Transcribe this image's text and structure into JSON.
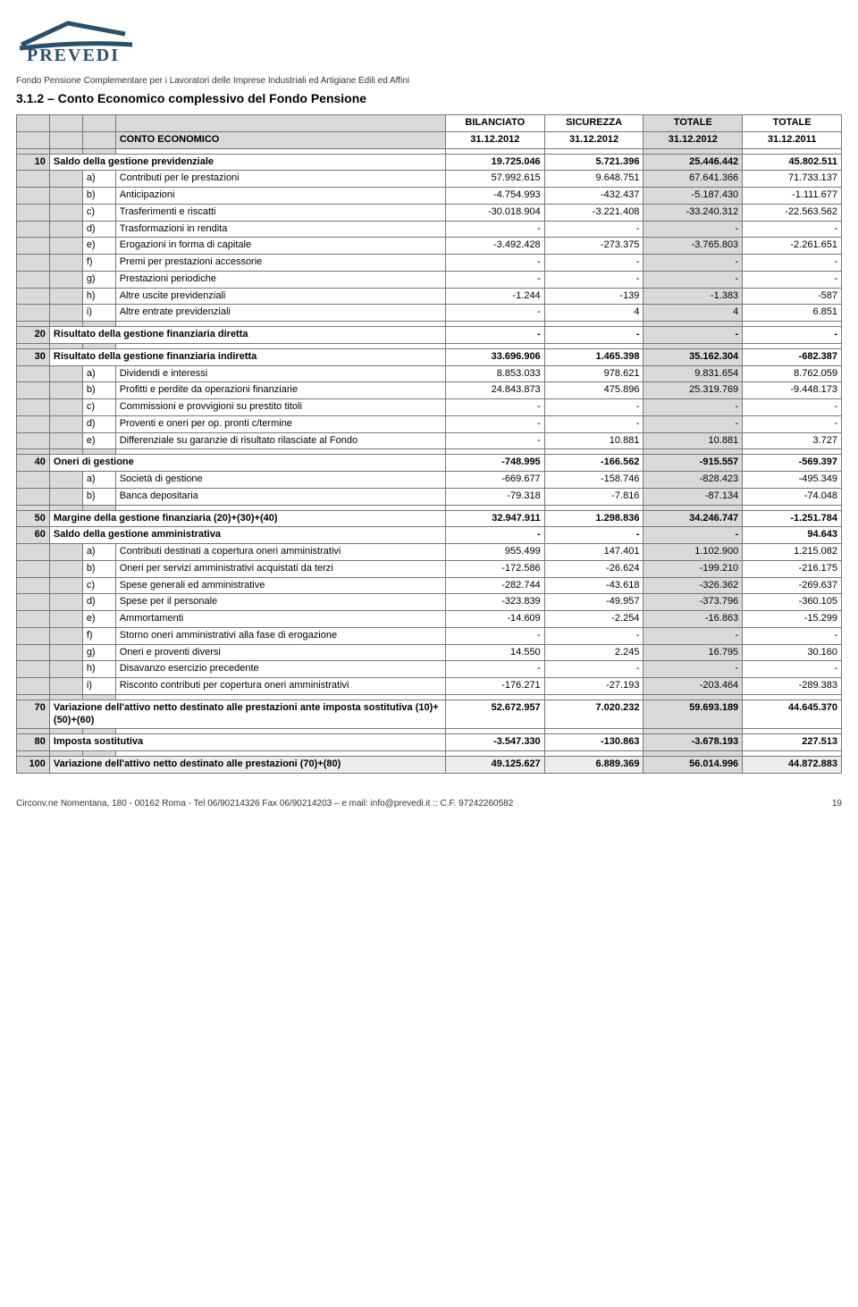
{
  "header": {
    "logo_text": "PREVEDI",
    "sub": "Fondo Pensione Complementare per i Lavoratori delle Imprese Industriali ed Artigiane Edili ed Affini",
    "title": "3.1.2 – Conto Economico complessivo del Fondo Pensione"
  },
  "thead": {
    "desc": "CONTO ECONOMICO",
    "col1_top": "BILANCIATO",
    "col1_bot": "31.12.2012",
    "col2_top": "SICUREZZA",
    "col2_bot": "31.12.2012",
    "col3_top": "TOTALE",
    "col3_bot": "31.12.2012",
    "col4_top": "TOTALE",
    "col4_bot": "31.12.2011"
  },
  "rows": [
    {
      "type": "sum",
      "code": "10",
      "desc": "Saldo della gestione previdenziale",
      "v": [
        "19.725.046",
        "5.721.396",
        "25.446.442",
        "45.802.511"
      ]
    },
    {
      "type": "sub",
      "let": "a)",
      "desc": "Contributi per le prestazioni",
      "v": [
        "57.992.615",
        "9.648.751",
        "67.641.366",
        "71.733.137"
      ]
    },
    {
      "type": "sub",
      "let": "b)",
      "desc": "Anticipazioni",
      "v": [
        "-4.754.993",
        "-432.437",
        "-5.187.430",
        "-1.111.677"
      ]
    },
    {
      "type": "sub",
      "let": "c)",
      "desc": "Trasferimenti e riscatti",
      "v": [
        "-30.018.904",
        "-3.221.408",
        "-33.240.312",
        "-22.563.562"
      ]
    },
    {
      "type": "sub",
      "let": "d)",
      "desc": "Trasformazioni in rendita",
      "v": [
        "-",
        "-",
        "-",
        "-"
      ]
    },
    {
      "type": "sub",
      "let": "e)",
      "desc": "Erogazioni in forma di capitale",
      "v": [
        "-3.492.428",
        "-273.375",
        "-3.765.803",
        "-2.261.651"
      ]
    },
    {
      "type": "sub",
      "let": "f)",
      "desc": "Premi per prestazioni accessorie",
      "v": [
        "-",
        "-",
        "-",
        "-"
      ]
    },
    {
      "type": "sub",
      "let": "g)",
      "desc": "Prestazioni periodiche",
      "v": [
        "-",
        "-",
        "-",
        "-"
      ]
    },
    {
      "type": "sub",
      "let": "h)",
      "desc": "Altre uscite previdenziali",
      "v": [
        "-1.244",
        "-139",
        "-1.383",
        "-587"
      ]
    },
    {
      "type": "sub",
      "let": "i)",
      "desc": "Altre entrate previdenziali",
      "v": [
        "-",
        "4",
        "4",
        "6.851"
      ]
    },
    {
      "type": "blank"
    },
    {
      "type": "sum",
      "code": "20",
      "desc": "Risultato della gestione finanziaria diretta",
      "v": [
        "-",
        "-",
        "-",
        "-"
      ]
    },
    {
      "type": "blank"
    },
    {
      "type": "sum",
      "code": "30",
      "desc": "Risultato della gestione finanziaria indiretta",
      "v": [
        "33.696.906",
        "1.465.398",
        "35.162.304",
        "-682.387"
      ]
    },
    {
      "type": "sub",
      "let": "a)",
      "desc": "Dividendi e interessi",
      "v": [
        "8.853.033",
        "978.621",
        "9.831.654",
        "8.762.059"
      ]
    },
    {
      "type": "sub",
      "let": "b)",
      "desc": "Profitti e perdite da operazioni finanziarie",
      "v": [
        "24.843.873",
        "475.896",
        "25.319.769",
        "-9.448.173"
      ]
    },
    {
      "type": "sub",
      "let": "c)",
      "desc": "Commissioni e provvigioni su prestito titoli",
      "v": [
        "-",
        "-",
        "-",
        "-"
      ]
    },
    {
      "type": "sub",
      "let": "d)",
      "desc": "Proventi e oneri per op. pronti c/termine",
      "v": [
        "-",
        "-",
        "-",
        "-"
      ]
    },
    {
      "type": "sub",
      "let": "e)",
      "desc": "Differenziale su garanzie di risultato rilasciate al Fondo",
      "v": [
        "-",
        "10.881",
        "10.881",
        "3.727"
      ]
    },
    {
      "type": "blank"
    },
    {
      "type": "sum",
      "code": "40",
      "desc": "Oneri di gestione",
      "v": [
        "-748.995",
        "-166.562",
        "-915.557",
        "-569.397"
      ]
    },
    {
      "type": "sub",
      "let": "a)",
      "desc": "Società di gestione",
      "v": [
        "-669.677",
        "-158.746",
        "-828.423",
        "-495.349"
      ]
    },
    {
      "type": "sub",
      "let": "b)",
      "desc": "Banca depositaria",
      "v": [
        "-79.318",
        "-7.816",
        "-87.134",
        "-74.048"
      ]
    },
    {
      "type": "blank"
    },
    {
      "type": "sum",
      "code": "50",
      "desc": "Margine della gestione finanziaria (20)+(30)+(40)",
      "v": [
        "32.947.911",
        "1.298.836",
        "34.246.747",
        "-1.251.784"
      ]
    },
    {
      "type": "sum",
      "code": "60",
      "desc": "Saldo della gestione amministrativa",
      "v": [
        "-",
        "-",
        "-",
        "94.643"
      ]
    },
    {
      "type": "sub",
      "let": "a)",
      "desc": "Contributi destinati a copertura oneri amministrativi",
      "v": [
        "955.499",
        "147.401",
        "1.102.900",
        "1.215.082"
      ]
    },
    {
      "type": "sub",
      "let": "b)",
      "desc": "Oneri per servizi amministrativi acquistati da terzi",
      "v": [
        "-172.586",
        "-26.624",
        "-199.210",
        "-216.175"
      ]
    },
    {
      "type": "sub",
      "let": "c)",
      "desc": "Spese generali ed amministrative",
      "v": [
        "-282.744",
        "-43.618",
        "-326.362",
        "-269.637"
      ]
    },
    {
      "type": "sub",
      "let": "d)",
      "desc": "Spese per il personale",
      "v": [
        "-323.839",
        "-49.957",
        "-373.796",
        "-360.105"
      ]
    },
    {
      "type": "sub",
      "let": "e)",
      "desc": "Ammortamenti",
      "v": [
        "-14.609",
        "-2.254",
        "-16.863",
        "-15.299"
      ]
    },
    {
      "type": "sub",
      "let": "f)",
      "desc": "Storno oneri amministrativi alla fase di erogazione",
      "v": [
        "-",
        "-",
        "-",
        "-"
      ]
    },
    {
      "type": "sub",
      "let": "g)",
      "desc": "Oneri e proventi diversi",
      "v": [
        "14.550",
        "2.245",
        "16.795",
        "30.160"
      ]
    },
    {
      "type": "sub",
      "let": "h)",
      "desc": "Disavanzo esercizio precedente",
      "v": [
        "-",
        "-",
        "-",
        "-"
      ]
    },
    {
      "type": "sub",
      "let": "i)",
      "desc": "Risconto contributi per copertura oneri amministrativi",
      "v": [
        "-176.271",
        "-27.193",
        "-203.464",
        "-289.383"
      ]
    },
    {
      "type": "blank"
    },
    {
      "type": "sum",
      "code": "70",
      "desc": "Variazione dell'attivo netto destinato alle prestazioni ante imposta sostitutiva (10)+(50)+(60)",
      "v": [
        "52.672.957",
        "7.020.232",
        "59.693.189",
        "44.645.370"
      ]
    },
    {
      "type": "blank"
    },
    {
      "type": "sum",
      "code": "80",
      "desc": "Imposta sostitutiva",
      "v": [
        "-3.547.330",
        "-130.863",
        "-3.678.193",
        "227.513"
      ]
    },
    {
      "type": "blank"
    },
    {
      "type": "total",
      "code": "100",
      "desc": "Variazione dell'attivo netto destinato alle prestazioni (70)+(80)",
      "v": [
        "49.125.627",
        "6.889.369",
        "56.014.996",
        "44.872.883"
      ]
    }
  ],
  "footer": {
    "left": "Circonv.ne Nomentana, 180 - 00162 Roma - Tel 06/90214326 Fax 06/90214203 – e mail: info@prevedi.it :: C.F. 97242260582",
    "page": "19"
  },
  "colors": {
    "logo_roof": "#2a4f6e",
    "grey_cell": "#d9d9d9",
    "grey_light": "#ececec",
    "border": "#777777"
  }
}
